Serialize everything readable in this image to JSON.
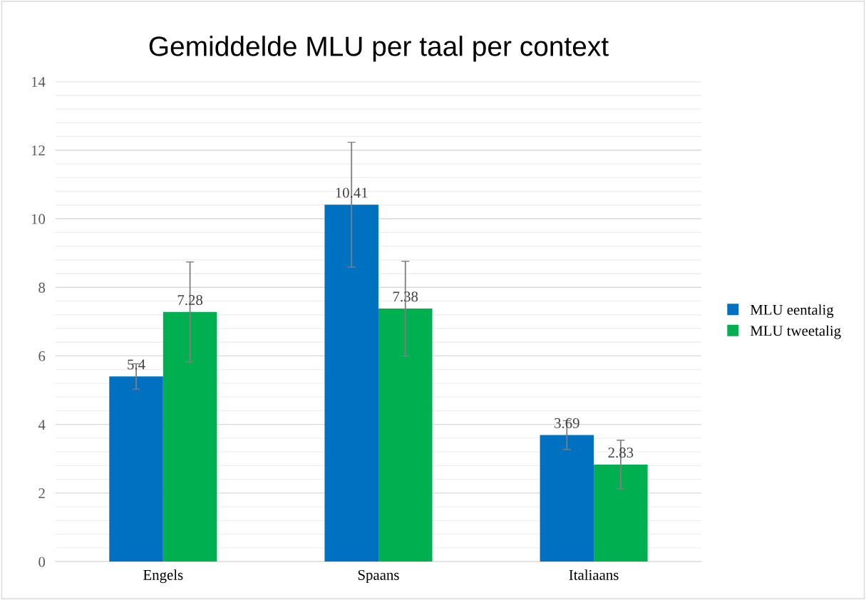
{
  "chart_data": {
    "type": "bar",
    "title": "Gemiddelde MLU per taal per context",
    "categories": [
      "Engels",
      "Spaans",
      "Italiaans"
    ],
    "series": [
      {
        "name": "MLU eentalig",
        "color": "#0070c0",
        "values": [
          5.4,
          10.41,
          3.69
        ],
        "errors": [
          0.37,
          1.82,
          0.42
        ]
      },
      {
        "name": "MLU tweetalig",
        "color": "#00b050",
        "values": [
          7.28,
          7.38,
          2.83
        ],
        "errors": [
          1.46,
          1.38,
          0.71
        ]
      }
    ],
    "data_labels": true,
    "ylim": [
      0,
      14
    ],
    "yticks": [
      0,
      {
        "value": 0.4,
        "label": null
      },
      {
        "value": 0.8,
        "label": null
      },
      {
        "value": 1.2,
        "label": null
      },
      {
        "value": 1.6,
        "label": null
      },
      2,
      {
        "value": 2.4,
        "label": null
      },
      {
        "value": 2.8,
        "label": null
      },
      {
        "value": 3.2,
        "label": null
      },
      {
        "value": 3.6,
        "label": null
      },
      4,
      {
        "value": 4.4,
        "label": null
      },
      {
        "value": 4.8,
        "label": null
      },
      {
        "value": 5.2,
        "label": null
      },
      {
        "value": 5.6,
        "label": null
      },
      6,
      {
        "value": 6.4,
        "label": null
      },
      {
        "value": 6.8,
        "label": null
      },
      {
        "value": 7.2,
        "label": null
      },
      {
        "value": 7.6,
        "label": null
      },
      8,
      {
        "value": 8.4,
        "label": null
      },
      {
        "value": 8.8,
        "label": null
      },
      {
        "value": 9.2,
        "label": null
      },
      {
        "value": 9.6,
        "label": null
      },
      10,
      {
        "value": 10.4,
        "label": null
      },
      {
        "value": 10.8,
        "label": null
      },
      {
        "value": 11.2,
        "label": null
      },
      {
        "value": 11.6,
        "label": null
      },
      12,
      {
        "value": 12.4,
        "label": null
      },
      {
        "value": 12.8,
        "label": null
      },
      {
        "value": 13.2,
        "label": null
      },
      {
        "value": 13.6,
        "label": null
      },
      14
    ],
    "grid": "y",
    "legend": "right"
  }
}
